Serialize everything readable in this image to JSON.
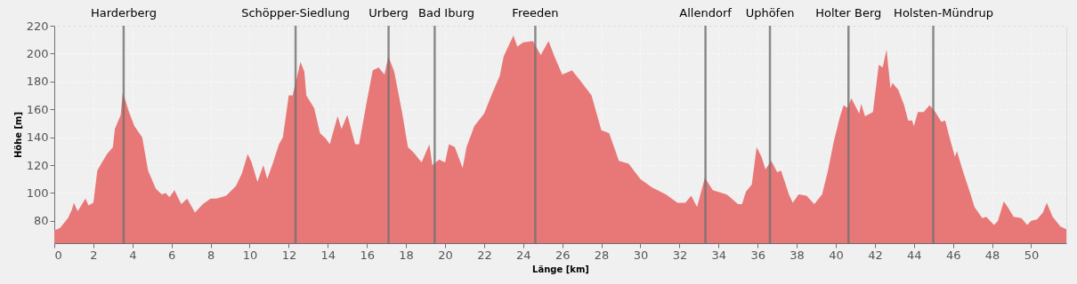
{
  "chart_data": {
    "type": "area",
    "xlabel": "Länge [km]",
    "ylabel": "Höhe [m]",
    "x": [
      0,
      0.3,
      0.7,
      0.9,
      1.0,
      1.2,
      1.5,
      1.6,
      1.75,
      2.0,
      2.2,
      2.4,
      2.7,
      3.0,
      3.1,
      3.4,
      3.5,
      3.65,
      3.8,
      4.1,
      4.5,
      4.8,
      5.2,
      5.5,
      5.7,
      5.9,
      6.15,
      6.5,
      6.8,
      7.2,
      7.6,
      8.0,
      8.3,
      8.8,
      9.3,
      9.6,
      9.9,
      10.1,
      10.4,
      10.7,
      10.9,
      11.2,
      11.5,
      11.7,
      12.0,
      12.2,
      12.4,
      12.6,
      12.8,
      12.9,
      13.3,
      13.6,
      13.9,
      14.1,
      14.5,
      14.7,
      15.0,
      15.4,
      15.6,
      16.0,
      16.3,
      16.6,
      16.9,
      17.1,
      17.4,
      17.8,
      18.1,
      18.4,
      18.8,
      19.2,
      19.35,
      19.7,
      20.0,
      20.2,
      20.5,
      20.9,
      21.1,
      21.5,
      22.0,
      22.4,
      22.8,
      23.0,
      23.5,
      23.7,
      24.0,
      24.5,
      24.9,
      25.3,
      25.6,
      26.0,
      26.5,
      26.9,
      27.5,
      28.0,
      28.4,
      28.9,
      29.4,
      30.0,
      30.6,
      31.3,
      31.9,
      32.3,
      32.6,
      32.9,
      33.3,
      33.7,
      34.4,
      34.5,
      35.0,
      35.2,
      35.4,
      35.7,
      35.95,
      36.2,
      36.4,
      36.7,
      37.0,
      37.2,
      37.6,
      37.8,
      38.1,
      38.5,
      38.9,
      39.3,
      39.6,
      39.9,
      40.2,
      40.4,
      40.6,
      40.8,
      41.2,
      41.3,
      41.5,
      41.9,
      42.2,
      42.4,
      42.6,
      42.8,
      42.9,
      43.2,
      43.5,
      43.7,
      43.9,
      44.0,
      44.2,
      44.5,
      44.8,
      45.1,
      45.4,
      45.6,
      45.8,
      46.1,
      46.2,
      46.5,
      46.9,
      47.1,
      47.5,
      47.7,
      48.1,
      48.3,
      48.6,
      48.8,
      49.1,
      49.5,
      49.8,
      50.0,
      50.3,
      50.6,
      50.8,
      51.1,
      51.5,
      51.8
    ],
    "series": [
      {
        "color": "#e87878",
        "values": [
          73,
          75,
          82,
          88,
          93,
          87,
          94,
          96,
          91,
          93,
          116,
          121,
          128,
          133,
          146,
          156,
          172,
          166,
          159,
          148,
          140,
          116,
          103,
          99,
          100,
          97,
          102,
          92,
          96,
          86,
          92,
          96,
          96,
          98,
          105,
          114,
          128,
          122,
          108,
          120,
          110,
          122,
          135,
          140,
          170,
          170,
          182,
          194,
          187,
          170,
          161,
          143,
          139,
          135,
          155,
          146,
          156,
          135,
          135,
          166,
          188,
          190,
          185,
          198,
          187,
          158,
          133,
          129,
          122,
          135,
          120,
          124,
          122,
          135,
          133,
          118,
          133,
          148,
          157,
          171,
          184,
          198,
          213,
          205,
          208,
          209,
          199,
          209,
          198,
          185,
          188,
          181,
          170,
          145,
          143,
          123,
          121,
          110,
          104,
          99,
          93,
          93,
          98,
          90,
          111,
          102,
          99,
          98,
          92,
          92,
          101,
          106,
          133,
          126,
          117,
          123,
          115,
          116,
          99,
          93,
          99,
          98,
          92,
          99,
          116,
          137,
          154,
          163,
          161,
          168,
          157,
          164,
          155,
          158,
          192,
          190,
          203,
          175,
          179,
          174,
          163,
          152,
          152,
          148,
          158,
          158,
          163,
          158,
          151,
          152,
          141,
          126,
          130,
          116,
          99,
          90,
          82,
          83,
          77,
          80,
          94,
          90,
          83,
          82,
          77,
          80,
          81,
          86,
          93,
          83,
          76,
          74
        ]
      }
    ],
    "xlim": [
      0,
      51.8
    ],
    "ylim": [
      64,
      220
    ],
    "xticks": [
      0,
      2,
      4,
      6,
      8,
      10,
      12,
      14,
      16,
      18,
      20,
      22,
      24,
      26,
      28,
      30,
      32,
      34,
      36,
      38,
      40,
      42,
      44,
      46,
      48,
      50
    ],
    "yticks": [
      80,
      100,
      120,
      140,
      160,
      180,
      200,
      220
    ],
    "grid": true,
    "ref_lines": [
      {
        "axis": "x",
        "value": 3.55,
        "label": "Harderberg",
        "color": "#707070"
      },
      {
        "axis": "x",
        "value": 12.35,
        "label": "Schöpper-Siedlung",
        "color": "#707070"
      },
      {
        "axis": "x",
        "value": 17.11,
        "label": "Urberg",
        "color": "#707070"
      },
      {
        "axis": "x",
        "value": 19.47,
        "label": "Bad Iburg",
        "color": "#707070"
      },
      {
        "axis": "x",
        "value": 24.62,
        "label": "Freeden",
        "color": "#707070"
      },
      {
        "axis": "x",
        "value": 33.33,
        "label": "Allendorf",
        "color": "#707070"
      },
      {
        "axis": "x",
        "value": 36.63,
        "label": "Uphöfen",
        "color": "#707070"
      },
      {
        "axis": "x",
        "value": 40.65,
        "label": "Holter Berg",
        "color": "#707070"
      },
      {
        "axis": "x",
        "value": 44.99,
        "label": "Holsten-Mündrup",
        "color": "#707070"
      }
    ]
  }
}
